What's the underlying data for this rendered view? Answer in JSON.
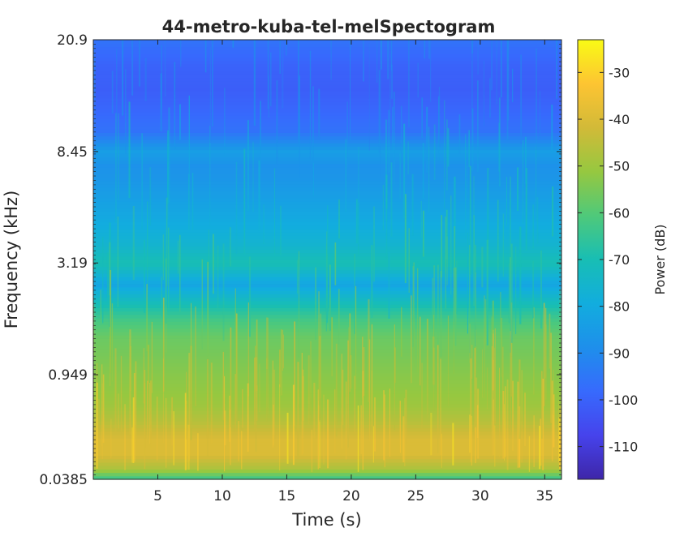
{
  "chart_data": {
    "type": "heatmap",
    "title": "44-metro-kuba-tel-melSpectogram",
    "xlabel": "Time (s)",
    "ylabel": "Frequency (kHz)",
    "xlim": [
      0,
      36.3
    ],
    "x_ticks": [
      5,
      10,
      15,
      20,
      25,
      30,
      35
    ],
    "x_tick_labels": [
      "5",
      "10",
      "15",
      "20",
      "25",
      "30",
      "35"
    ],
    "y_scale": "mel",
    "y_ticks": [
      0.0385,
      0.949,
      3.19,
      8.45,
      20.9
    ],
    "y_tick_labels": [
      "0.0385",
      "0.949",
      "3.19",
      "8.45",
      "20.9"
    ],
    "colorbar": {
      "label": "Power (dB)",
      "colormap": "parula",
      "range": [
        -117,
        -23
      ],
      "ticks": [
        -110,
        -100,
        -90,
        -80,
        -70,
        -60,
        -50,
        -40,
        -30
      ],
      "tick_labels": [
        "-110",
        "-100",
        "-90",
        "-80",
        "-70",
        "-60",
        "-50",
        "-40",
        "-30"
      ]
    },
    "power_profile_by_frequency": {
      "frequency_khz": [
        0.0385,
        0.1,
        0.2,
        0.3,
        0.45,
        0.6,
        0.8,
        0.949,
        1.2,
        1.5,
        1.8,
        2.2,
        2.6,
        3.19,
        3.8,
        4.6,
        5.5,
        6.5,
        7.5,
        8.45,
        10,
        12,
        14,
        17,
        20.9
      ],
      "power_db": [
        -65,
        -48,
        -40,
        -40,
        -46,
        -50,
        -52,
        -53,
        -55,
        -57,
        -62,
        -72,
        -82,
        -70,
        -76,
        -80,
        -83,
        -86,
        -88,
        -84,
        -96,
        -99,
        -101,
        -100,
        -96
      ]
    },
    "grid": false,
    "legend": "none"
  },
  "colors": {
    "background": "#ffffff",
    "text": "#262626",
    "axes_border": "#262626"
  }
}
